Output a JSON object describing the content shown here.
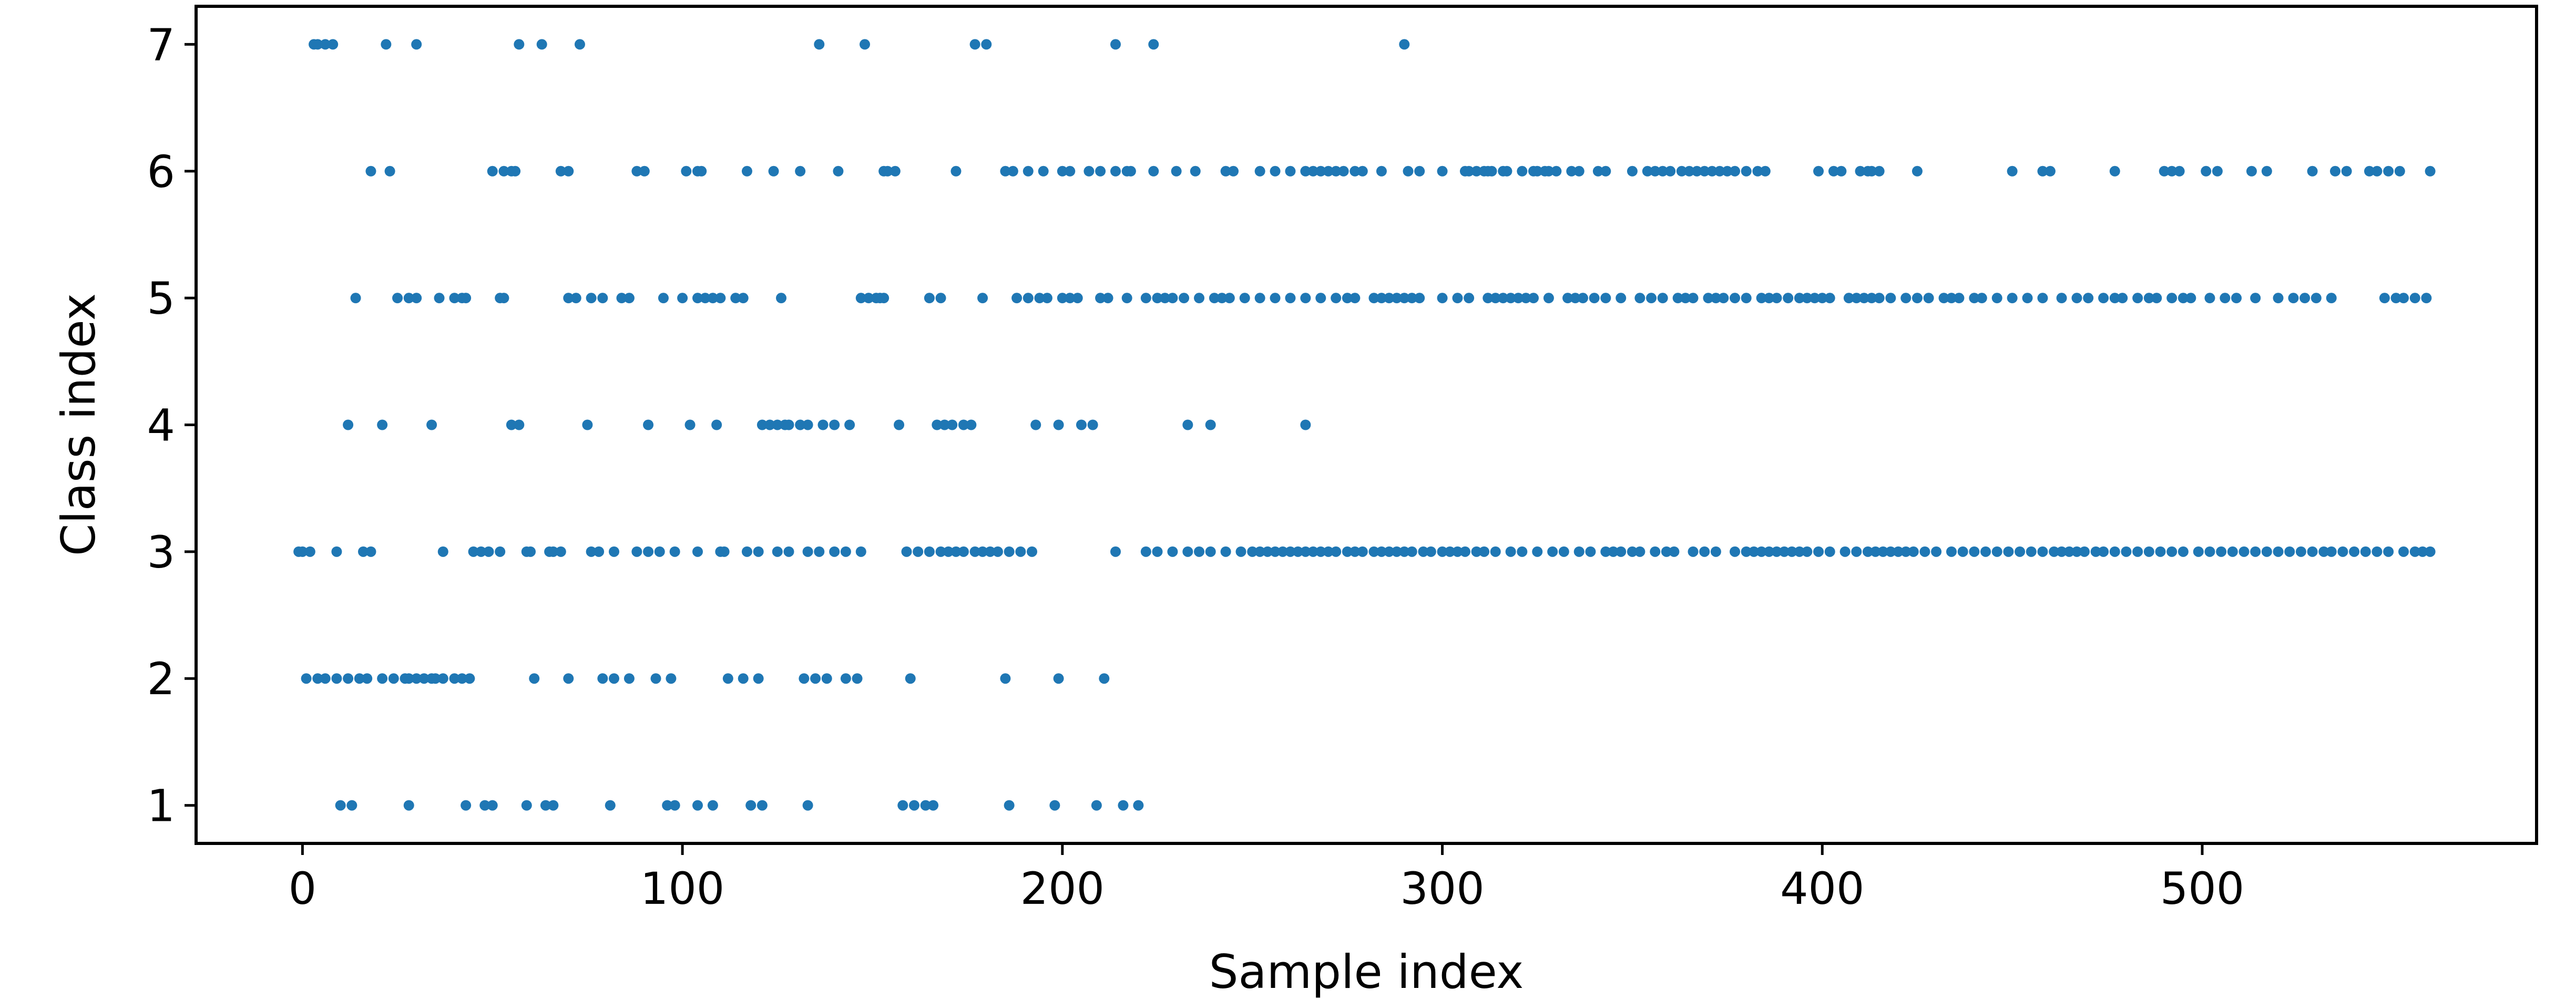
{
  "chart_data": {
    "type": "scatter",
    "title": "",
    "xlabel": "Sample index",
    "ylabel": "Class index",
    "xlim": [
      -28,
      588
    ],
    "ylim": [
      0.7,
      7.3
    ],
    "x_ticks": [
      0,
      100,
      200,
      300,
      400,
      500
    ],
    "y_ticks": [
      1,
      2,
      3,
      4,
      5,
      6,
      7
    ],
    "grid": false,
    "legend": "none",
    "marker_color": "#1f77b4",
    "points": [
      {
        "class": 7,
        "x": [
          3,
          4,
          6,
          8,
          22,
          30,
          57,
          63,
          73,
          136,
          148,
          177,
          180,
          214,
          224,
          290
        ]
      },
      {
        "class": 6,
        "x": [
          18,
          23,
          50,
          53,
          55,
          56,
          68,
          70,
          88,
          90,
          101,
          104,
          105,
          117,
          124,
          131,
          141,
          153,
          154,
          156,
          172,
          185,
          187,
          191,
          195,
          200,
          202,
          207,
          210,
          214,
          217,
          218,
          224,
          230,
          235,
          243,
          245,
          252,
          256,
          260,
          264,
          266,
          268,
          270,
          272,
          274,
          277,
          279,
          284,
          291,
          294,
          300,
          306,
          307,
          309,
          311,
          312,
          313,
          316,
          317,
          321,
          324,
          325,
          327,
          328,
          330,
          334,
          336,
          341,
          343,
          350,
          354,
          356,
          358,
          360,
          363,
          365,
          367,
          369,
          371,
          373,
          375,
          377,
          380,
          383,
          385,
          399,
          403,
          405,
          410,
          412,
          413,
          415,
          425,
          450,
          458,
          460,
          477,
          490,
          492,
          494,
          501,
          504,
          513,
          517,
          529,
          535,
          538,
          544,
          546,
          549,
          552,
          560
        ]
      },
      {
        "class": 5,
        "x": [
          14,
          25,
          28,
          30,
          36,
          40,
          42,
          43,
          52,
          53,
          70,
          72,
          76,
          79,
          84,
          86,
          95,
          100,
          104,
          106,
          108,
          110,
          114,
          116,
          126,
          147,
          149,
          151,
          152,
          153,
          165,
          168,
          179,
          188,
          191,
          194,
          196,
          200,
          202,
          204,
          210,
          212,
          217,
          222,
          225,
          227,
          229,
          232,
          236,
          240,
          242,
          244,
          248,
          252,
          256,
          260,
          264,
          268,
          272,
          275,
          277,
          282,
          284,
          286,
          288,
          290,
          292,
          294,
          300,
          304,
          307,
          312,
          314,
          316,
          318,
          320,
          322,
          324,
          328,
          333,
          335,
          337,
          340,
          343,
          347,
          352,
          355,
          358,
          362,
          364,
          366,
          370,
          372,
          374,
          377,
          380,
          384,
          386,
          388,
          391,
          394,
          396,
          398,
          400,
          402,
          407,
          409,
          411,
          413,
          415,
          418,
          422,
          425,
          428,
          432,
          434,
          436,
          440,
          442,
          446,
          450,
          454,
          458,
          463,
          467,
          470,
          474,
          477,
          479,
          483,
          486,
          488,
          492,
          495,
          497,
          502,
          506,
          509,
          514,
          520,
          524,
          527,
          530,
          534,
          548,
          551,
          553,
          556,
          559
        ]
      },
      {
        "class": 4,
        "x": [
          12,
          21,
          34,
          55,
          57,
          75,
          91,
          102,
          109,
          121,
          123,
          125,
          127,
          128,
          131,
          133,
          137,
          140,
          144,
          157,
          167,
          169,
          171,
          174,
          176,
          193,
          199,
          205,
          208,
          233,
          239,
          264
        ]
      },
      {
        "class": 3,
        "x": [
          -1,
          0,
          2,
          9,
          16,
          18,
          37,
          45,
          47,
          49,
          52,
          59,
          60,
          65,
          66,
          68,
          76,
          78,
          82,
          88,
          91,
          94,
          98,
          104,
          110,
          111,
          117,
          120,
          125,
          128,
          133,
          136,
          140,
          143,
          147,
          159,
          162,
          165,
          168,
          170,
          172,
          174,
          177,
          179,
          181,
          183,
          186,
          189,
          192,
          214,
          222,
          225,
          229,
          233,
          236,
          239,
          243,
          247,
          250,
          252,
          254,
          256,
          258,
          260,
          262,
          264,
          266,
          268,
          270,
          272,
          275,
          277,
          279,
          282,
          284,
          286,
          288,
          290,
          292,
          295,
          297,
          300,
          302,
          304,
          306,
          309,
          311,
          314,
          318,
          321,
          325,
          329,
          332,
          336,
          339,
          343,
          345,
          347,
          350,
          352,
          356,
          359,
          361,
          366,
          369,
          372,
          377,
          380,
          382,
          384,
          386,
          388,
          390,
          392,
          394,
          396,
          399,
          402,
          406,
          409,
          412,
          414,
          416,
          418,
          420,
          422,
          424,
          427,
          430,
          434,
          437,
          440,
          443,
          446,
          449,
          452,
          455,
          458,
          461,
          463,
          465,
          467,
          469,
          472,
          474,
          477,
          480,
          483,
          486,
          489,
          492,
          495,
          499,
          502,
          505,
          508,
          511,
          514,
          517,
          520,
          523,
          526,
          529,
          532,
          534,
          537,
          540,
          543,
          546,
          549,
          553,
          556,
          558,
          560
        ]
      },
      {
        "class": 2,
        "x": [
          1,
          4,
          6,
          9,
          12,
          15,
          17,
          21,
          24,
          27,
          28,
          30,
          32,
          34,
          35,
          37,
          40,
          42,
          44,
          61,
          70,
          79,
          82,
          86,
          93,
          97,
          112,
          116,
          120,
          132,
          135,
          138,
          143,
          146,
          160,
          185,
          199,
          211
        ]
      },
      {
        "class": 1,
        "x": [
          10,
          13,
          28,
          43,
          48,
          50,
          59,
          64,
          66,
          81,
          96,
          98,
          104,
          108,
          118,
          121,
          133,
          158,
          161,
          164,
          166,
          186,
          198,
          209,
          216,
          220
        ]
      }
    ]
  }
}
